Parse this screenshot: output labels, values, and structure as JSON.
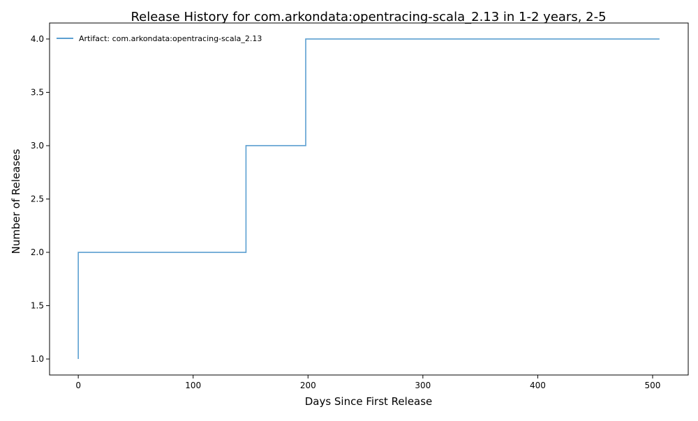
{
  "chart_data": {
    "type": "line",
    "title": "Release History for com.arkondata:opentracing-scala_2.13 in 1-2 years, 2-5",
    "xlabel": "Days Since First Release",
    "ylabel": "Number of Releases",
    "xlim": [
      -25,
      531
    ],
    "ylim": [
      0.85,
      4.15
    ],
    "xticks": [
      0,
      100,
      200,
      300,
      400,
      500
    ],
    "yticks": [
      1.0,
      1.5,
      2.0,
      2.5,
      3.0,
      3.5,
      4.0
    ],
    "xtick_labels": [
      "0",
      "100",
      "200",
      "300",
      "400",
      "500"
    ],
    "ytick_labels": [
      "1.0",
      "1.5",
      "2.0",
      "2.5",
      "3.0",
      "3.5",
      "4.0"
    ],
    "grid": false,
    "legend_position": "top-left",
    "step": "post",
    "series": [
      {
        "name": "Artifact: com.arkondata:opentracing-scala_2.13",
        "color": "#5b9fd1",
        "x": [
          0,
          0,
          146,
          198,
          506
        ],
        "y": [
          1,
          2,
          3,
          4,
          4
        ]
      }
    ]
  }
}
